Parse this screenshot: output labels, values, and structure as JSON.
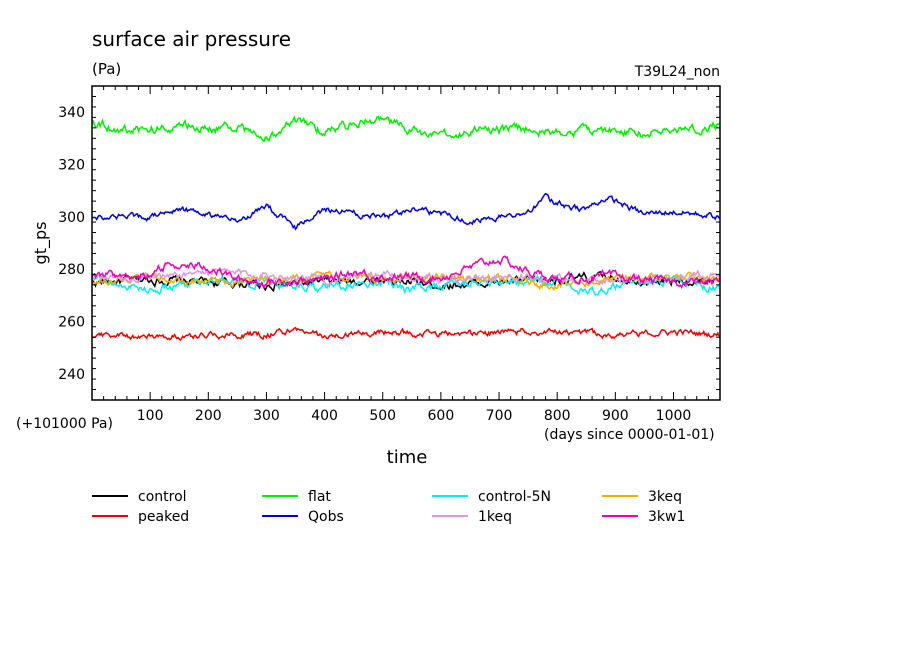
{
  "chart_data": {
    "type": "line",
    "title": "surface air pressure",
    "unit": "(Pa)",
    "run_label": "T39L24_non",
    "ylabel": "gt_ps",
    "xlabel": "time",
    "x_units": "(days since 0000-01-01)",
    "y_offset": "(+101000 Pa)",
    "xlim": [
      0,
      1080
    ],
    "ylim": [
      230,
      350
    ],
    "x_ticks": [
      100,
      200,
      300,
      400,
      500,
      600,
      700,
      800,
      900,
      1000
    ],
    "y_ticks": [
      240,
      260,
      280,
      300,
      320,
      340
    ],
    "grid": false,
    "legend_position": "bottom",
    "series": [
      {
        "name": "control",
        "color": "#000000",
        "mean": 275.5,
        "amp": 2.5,
        "key": [
          [
            0,
            275
          ],
          [
            100,
            276
          ],
          [
            200,
            275
          ],
          [
            300,
            274
          ],
          [
            400,
            275
          ],
          [
            500,
            276
          ],
          [
            600,
            274
          ],
          [
            700,
            275
          ],
          [
            800,
            276
          ],
          [
            900,
            277
          ],
          [
            1000,
            275
          ],
          [
            1080,
            276
          ]
        ]
      },
      {
        "name": "flat",
        "color": "#00ee00",
        "mean": 333,
        "amp": 2.6,
        "key": [
          [
            0,
            337
          ],
          [
            50,
            333
          ],
          [
            100,
            333
          ],
          [
            150,
            335
          ],
          [
            200,
            334
          ],
          [
            250,
            334
          ],
          [
            300,
            330
          ],
          [
            350,
            336
          ],
          [
            400,
            333
          ],
          [
            450,
            336
          ],
          [
            500,
            337
          ],
          [
            550,
            333
          ],
          [
            600,
            330
          ],
          [
            650,
            333
          ],
          [
            700,
            333
          ],
          [
            750,
            334
          ],
          [
            800,
            332
          ],
          [
            850,
            333
          ],
          [
            900,
            333
          ],
          [
            950,
            332
          ],
          [
            1000,
            333
          ],
          [
            1080,
            335
          ]
        ]
      },
      {
        "name": "control-5N",
        "color": "#00eeee",
        "mean": 275,
        "amp": 2.5,
        "key": [
          [
            0,
            276
          ],
          [
            100,
            272
          ],
          [
            200,
            276
          ],
          [
            300,
            275
          ],
          [
            400,
            273
          ],
          [
            500,
            276
          ],
          [
            550,
            272
          ],
          [
            600,
            274
          ],
          [
            700,
            275
          ],
          [
            800,
            275
          ],
          [
            850,
            271
          ],
          [
            900,
            274
          ],
          [
            1000,
            277
          ],
          [
            1080,
            272
          ]
        ]
      },
      {
        "name": "3keq",
        "color": "#eeb000",
        "mean": 276,
        "amp": 2.2,
        "key": [
          [
            0,
            275
          ],
          [
            100,
            277
          ],
          [
            200,
            275
          ],
          [
            300,
            276
          ],
          [
            400,
            278
          ],
          [
            500,
            276
          ],
          [
            600,
            277
          ],
          [
            700,
            276
          ],
          [
            800,
            274
          ],
          [
            900,
            276
          ],
          [
            1000,
            277
          ],
          [
            1080,
            276
          ]
        ]
      },
      {
        "name": "peaked",
        "color": "#ee0000",
        "mean": 255,
        "amp": 1.8,
        "key": [
          [
            0,
            255
          ],
          [
            100,
            254
          ],
          [
            200,
            255
          ],
          [
            300,
            255
          ],
          [
            350,
            257
          ],
          [
            400,
            254
          ],
          [
            500,
            256
          ],
          [
            600,
            255
          ],
          [
            700,
            256
          ],
          [
            800,
            256
          ],
          [
            900,
            255
          ],
          [
            1000,
            256
          ],
          [
            1080,
            255
          ]
        ]
      },
      {
        "name": "Qobs",
        "color": "#0000dd",
        "mean": 301,
        "amp": 1.8,
        "key": [
          [
            0,
            300
          ],
          [
            100,
            300
          ],
          [
            150,
            303
          ],
          [
            200,
            301
          ],
          [
            250,
            298
          ],
          [
            300,
            304
          ],
          [
            350,
            296
          ],
          [
            400,
            303
          ],
          [
            500,
            300
          ],
          [
            550,
            303
          ],
          [
            600,
            301
          ],
          [
            650,
            299
          ],
          [
            700,
            300
          ],
          [
            750,
            302
          ],
          [
            780,
            307
          ],
          [
            800,
            305
          ],
          [
            850,
            303
          ],
          [
            880,
            307
          ],
          [
            900,
            306
          ],
          [
            950,
            301
          ],
          [
            1000,
            302
          ],
          [
            1080,
            300
          ]
        ]
      },
      {
        "name": "1keq",
        "color": "#dd99dd",
        "mean": 276,
        "amp": 2.2,
        "key": [
          [
            0,
            276
          ],
          [
            100,
            277
          ],
          [
            200,
            279
          ],
          [
            300,
            278
          ],
          [
            400,
            276
          ],
          [
            500,
            278
          ],
          [
            600,
            276
          ],
          [
            700,
            277
          ],
          [
            800,
            276
          ],
          [
            900,
            276
          ],
          [
            1000,
            277
          ],
          [
            1080,
            279
          ]
        ]
      },
      {
        "name": "3kw1",
        "color": "#ee00bb",
        "mean": 277,
        "amp": 2.4,
        "key": [
          [
            0,
            276
          ],
          [
            50,
            278
          ],
          [
            100,
            278
          ],
          [
            130,
            282
          ],
          [
            200,
            281
          ],
          [
            250,
            276
          ],
          [
            300,
            275
          ],
          [
            400,
            276
          ],
          [
            450,
            279
          ],
          [
            500,
            277
          ],
          [
            600,
            277
          ],
          [
            700,
            284
          ],
          [
            750,
            279
          ],
          [
            800,
            276
          ],
          [
            900,
            277
          ],
          [
            1000,
            275
          ],
          [
            1080,
            275
          ]
        ]
      }
    ]
  }
}
